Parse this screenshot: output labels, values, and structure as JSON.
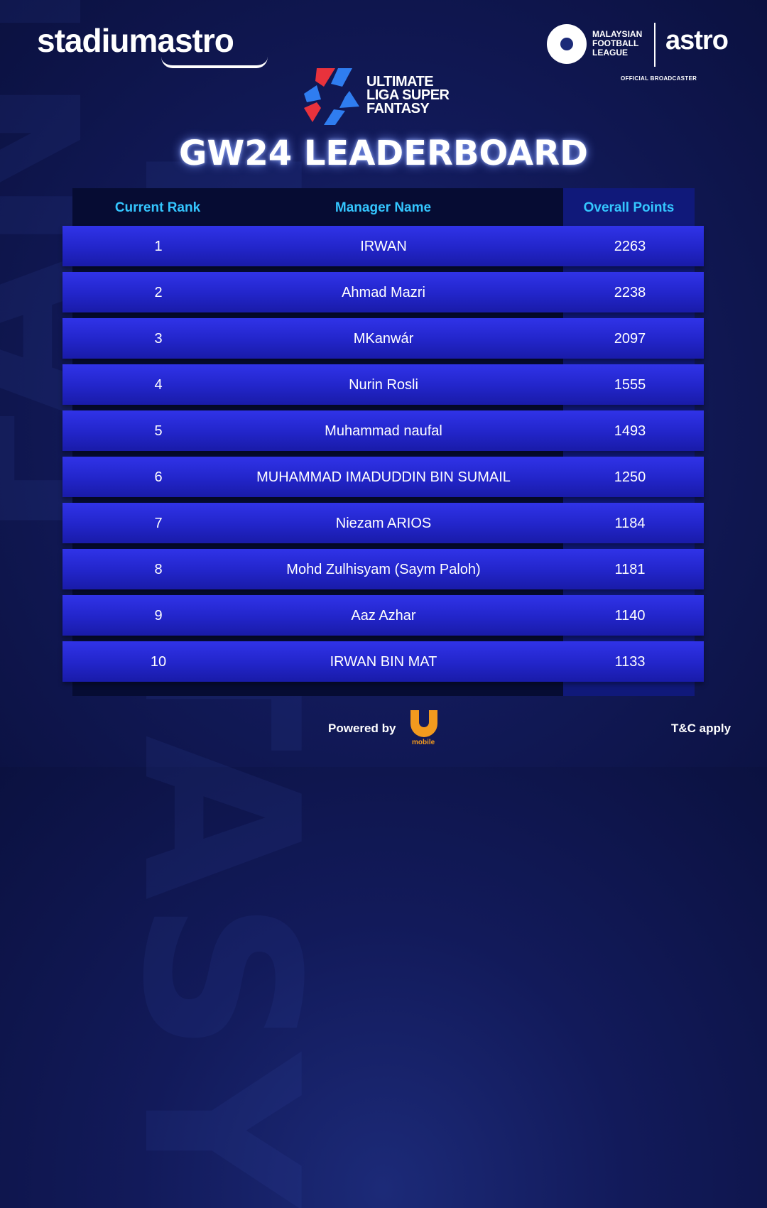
{
  "brand": {
    "left_logo": "stadiumastro",
    "league_logo_text": [
      "MALAYSIAN",
      "FOOTBALL",
      "LEAGUE"
    ],
    "right_logo": "astro",
    "broadcaster_label": "OFFICIAL BROADCASTER",
    "game_logo_text": [
      "ULTIMATE",
      "LIGA SUPER",
      "FANTASY"
    ]
  },
  "title": "GW24 LEADERBOARD",
  "table": {
    "headers": {
      "rank": "Current Rank",
      "name": "Manager Name",
      "points": "Overall Points"
    },
    "rows": [
      {
        "rank": "1",
        "name": "IRWAN",
        "points": "2263"
      },
      {
        "rank": "2",
        "name": "Ahmad Mazri",
        "points": "2238"
      },
      {
        "rank": "3",
        "name": "MKanwár",
        "points": "2097"
      },
      {
        "rank": "4",
        "name": "Nurin Rosli",
        "points": "1555"
      },
      {
        "rank": "5",
        "name": "Muhammad naufal",
        "points": "1493"
      },
      {
        "rank": "6",
        "name": "MUHAMMAD IMADUDDIN BIN SUMAIL",
        "points": "1250"
      },
      {
        "rank": "7",
        "name": "Niezam ARIOS",
        "points": "1184"
      },
      {
        "rank": "8",
        "name": "Mohd Zulhisyam (Saym Paloh)",
        "points": "1181"
      },
      {
        "rank": "9",
        "name": "Aaz Azhar",
        "points": "1140"
      },
      {
        "rank": "10",
        "name": "IRWAN BIN MAT",
        "points": "1133"
      }
    ]
  },
  "footer": {
    "powered_by": "Powered by",
    "sponsor_label": "mobile",
    "terms": "T&C apply"
  },
  "colors": {
    "background": "#121a5a",
    "row": "#2a2de0",
    "header_text": "#34c6ff",
    "sponsor": "#f29a1e",
    "logo_red": "#e8323c",
    "logo_blue": "#2f7df0"
  }
}
